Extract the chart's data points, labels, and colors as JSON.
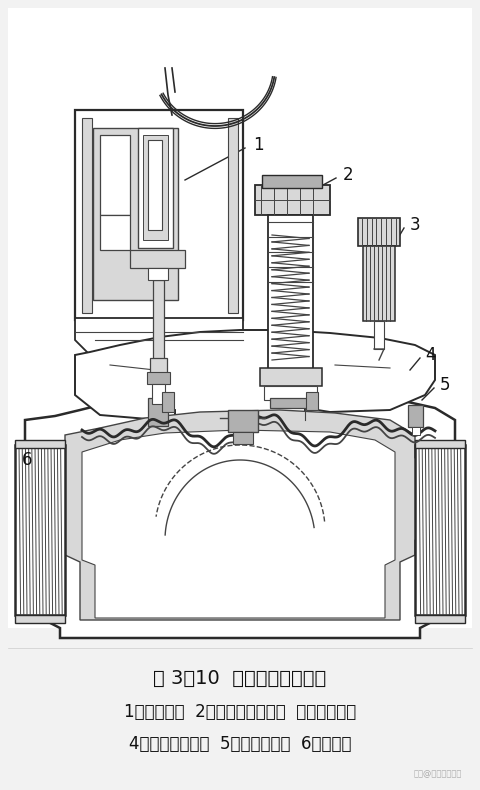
{
  "figure_width": 4.8,
  "figure_height": 7.9,
  "dpi": 100,
  "bg_color": "#f2f2f2",
  "diagram_bg": "#ffffff",
  "title_text": "图 3－10  电磁阀结构示意图",
  "caption1": "1－电磁头；  2－流量调节手柄；  外排气螺丝；",
  "caption2": "4－电磁阀上腔；  5－橡皮隔膜；  6－导流孔",
  "watermark": "头条@电气自动化圈",
  "title_fontsize": 14,
  "caption_fontsize": 12,
  "label_fontsize": 12,
  "lc": "#2a2a2a",
  "lc_thin": "#444444",
  "gray_light": "#d8d8d8",
  "gray_med": "#b0b0b0",
  "gray_dark": "#888888"
}
